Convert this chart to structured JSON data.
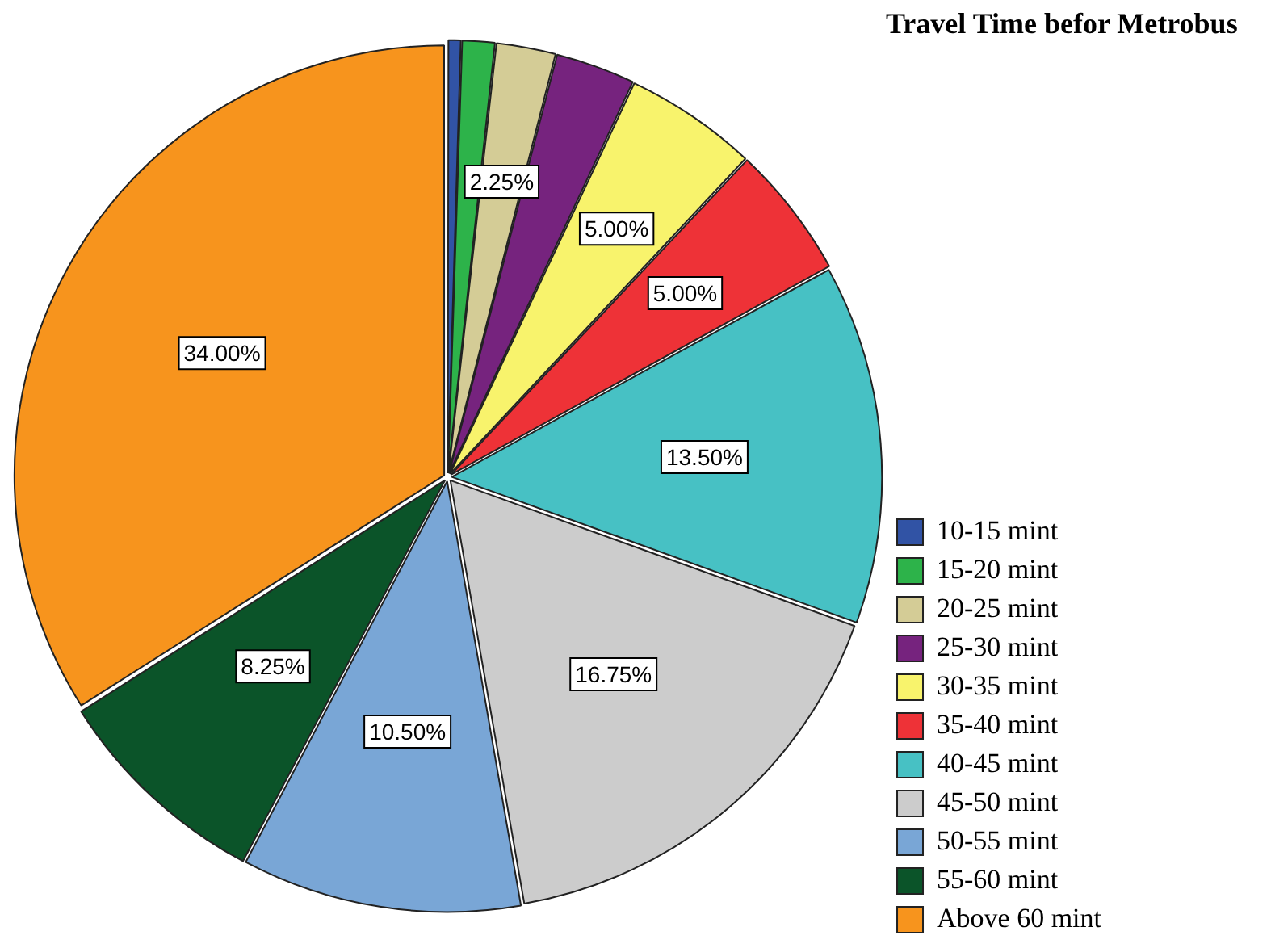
{
  "chart_data": {
    "type": "pie",
    "legend_title": "Travel Time befor Metrobus",
    "legend": "right",
    "categories": [
      "10-15 mint",
      "15-20 mint",
      "20-25 mint",
      "25-30 mint",
      "30-35 mint",
      "35-40 mint",
      "40-45 mint",
      "45-50 mint",
      "50-55 mint",
      "55-60 mint",
      "Above 60 mint"
    ],
    "values": [
      0.5,
      1.25,
      2.25,
      3.0,
      5.0,
      5.0,
      13.5,
      16.75,
      10.5,
      8.25,
      34.0
    ],
    "colors": [
      "#3153a5",
      "#2db34a",
      "#d4cc96",
      "#76237e",
      "#f8f36c",
      "#ee3237",
      "#47c1c4",
      "#cccccc",
      "#79a6d6",
      "#0b5429",
      "#f7941d"
    ],
    "value_labels": [
      null,
      null,
      "2.25%",
      null,
      "5.00%",
      "5.00%",
      "13.50%",
      "16.75%",
      "10.50%",
      "8.25%",
      "34.00%"
    ]
  }
}
